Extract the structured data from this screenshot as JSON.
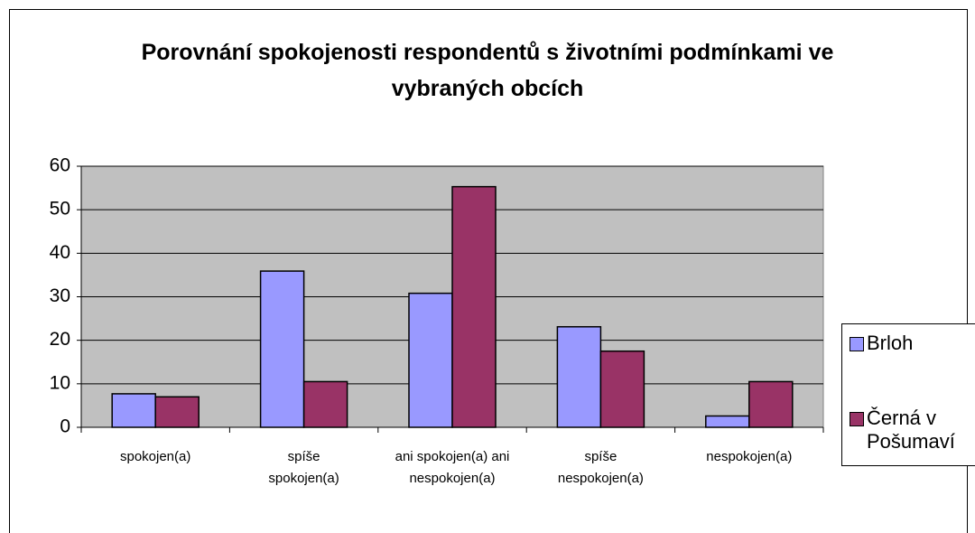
{
  "chart_data": {
    "type": "bar",
    "title": "Porovnání spokojenosti respondentů s životními podmínkami ve vybraných obcích",
    "categories": [
      "spokojen(a)",
      "spíše spokojen(a)",
      "ani spokojen(a) ani nespokojen(a)",
      "spíše nespokojen(a)",
      "nespokojen(a)"
    ],
    "series": [
      {
        "name": "Brloh",
        "color": "#9999ff",
        "values": [
          7.7,
          35.9,
          30.8,
          23.1,
          2.6
        ]
      },
      {
        "name": "Černá v Pošumaví",
        "color": "#993366",
        "values": [
          7,
          10.5,
          55.3,
          17.5,
          10.5
        ]
      }
    ],
    "ylim": [
      0,
      60
    ],
    "yticks": [
      0,
      10,
      20,
      30,
      40,
      50,
      60
    ],
    "grid": true,
    "legend": "right"
  }
}
